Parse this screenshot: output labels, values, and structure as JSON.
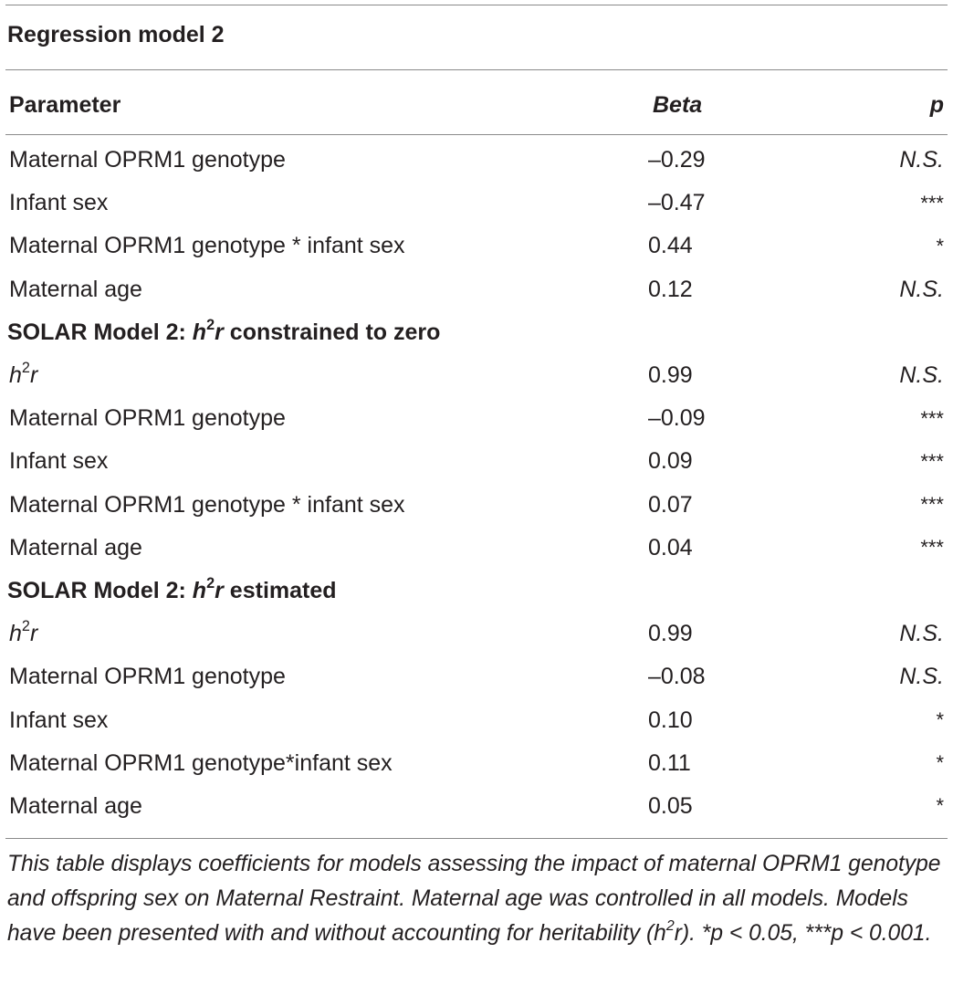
{
  "table": {
    "title": "Regression model 2",
    "headers": {
      "parameter": "Parameter",
      "beta": "Beta",
      "p": "p"
    },
    "regression_rows": [
      {
        "parameter": "Maternal OPRM1 genotype",
        "beta": "–0.29",
        "p": "N.S."
      },
      {
        "parameter": "Infant sex",
        "beta": "–0.47",
        "p": "***"
      },
      {
        "parameter": "Maternal OPRM1 genotype * infant sex",
        "beta": "0.44",
        "p": "*"
      },
      {
        "parameter": "Maternal age",
        "beta": "0.12",
        "p": "N.S."
      }
    ],
    "section_constrained": {
      "prefix": "SOLAR Model 2: ",
      "h": "h",
      "sup": "2",
      "r": "r",
      "suffix": " constrained to zero"
    },
    "constrained_rows": [
      {
        "parameter_h": "h",
        "parameter_sup": "2",
        "parameter_r": "r",
        "beta": "0.99",
        "p": "N.S."
      },
      {
        "parameter": "Maternal OPRM1 genotype",
        "beta": "–0.09",
        "p": "***"
      },
      {
        "parameter": "Infant sex",
        "beta": "0.09",
        "p": "***"
      },
      {
        "parameter": "Maternal OPRM1 genotype * infant sex",
        "beta": "0.07",
        "p": "***"
      },
      {
        "parameter": "Maternal age",
        "beta": "0.04",
        "p": "***"
      }
    ],
    "section_estimated": {
      "prefix": "SOLAR Model 2: ",
      "h": "h",
      "sup": "2",
      "r": "r",
      "suffix": " estimated"
    },
    "estimated_rows": [
      {
        "parameter_h": "h",
        "parameter_sup": "2",
        "parameter_r": "r",
        "beta": "0.99",
        "p": "N.S."
      },
      {
        "parameter": "Maternal OPRM1 genotype",
        "beta": "–0.08",
        "p": "N.S."
      },
      {
        "parameter": "Infant sex",
        "beta": "0.10",
        "p": "*"
      },
      {
        "parameter": "Maternal OPRM1 genotype*infant sex",
        "beta": "0.11",
        "p": "*"
      },
      {
        "parameter": "Maternal age",
        "beta": "0.05",
        "p": "*"
      }
    ]
  },
  "footnote": {
    "text_before_sup": "This table displays coefficients for models assessing the impact of maternal OPRM1 genotype and offspring sex on Maternal Restraint. Maternal age was controlled in all models. Models have been presented with and without accounting for heritability (h",
    "sup": "2",
    "text_after_sup": "r). *p < 0.05, ***p < 0.001."
  },
  "colors": {
    "text": "#231f20",
    "rule": "#8a8a8a",
    "background": "#ffffff"
  }
}
